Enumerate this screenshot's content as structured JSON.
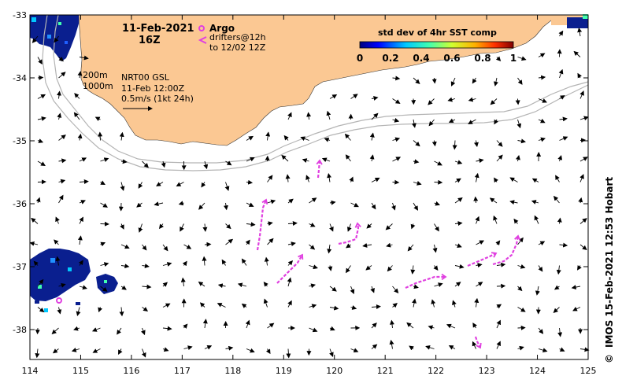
{
  "header": {
    "date": "11-Feb-2021",
    "hour": "16Z"
  },
  "legend": {
    "argo_label": "Argo",
    "drifters_label": "drifters@12h",
    "drifters_to": "to 12/02 12Z",
    "colorbar_title": "std dev of 4hr SST comp",
    "colorbar_ticks": [
      "0",
      "0.2",
      "0.4",
      "0.6",
      "0.8",
      "1"
    ]
  },
  "annotations": {
    "contour_200": "200m",
    "contour_1000": "1000m",
    "product": "NRT00 GSL",
    "product_time": "11-Feb 12:00Z",
    "scale_vector": "0.5m/s (1kt 24h)"
  },
  "axes": {
    "x_ticks": [
      "114",
      "115",
      "116",
      "117",
      "118",
      "119",
      "120",
      "121",
      "122",
      "123",
      "124",
      "125"
    ],
    "y_ticks": [
      "-33",
      "-34",
      "-35",
      "-36",
      "-37",
      "-38"
    ]
  },
  "credit": "IMOS 15-Feb-2021 12:53 Hobart",
  "copyright_symbol": "©",
  "colors": {
    "land": "#fbc893",
    "drifter": "#e040e0",
    "argo": "#e040e0",
    "sst_dark": "#0a1f8f",
    "contour": "#b4b4b4"
  }
}
